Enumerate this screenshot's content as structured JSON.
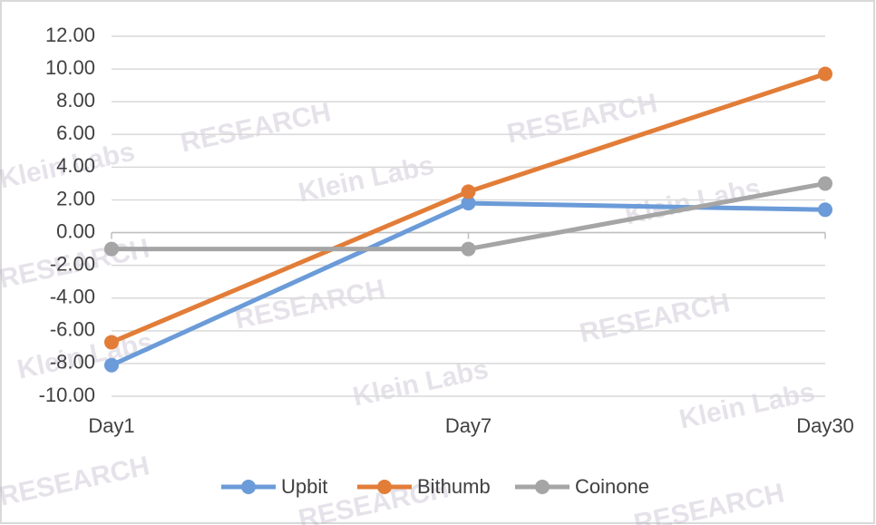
{
  "chart_data": {
    "type": "line",
    "categories": [
      "Day1",
      "Day7",
      "Day30"
    ],
    "series": [
      {
        "name": "Upbit",
        "color": "#6b9bd8",
        "values": [
          -8.1,
          1.8,
          1.4
        ]
      },
      {
        "name": "Bithumb",
        "color": "#e27d38",
        "values": [
          -6.7,
          2.5,
          9.7
        ]
      },
      {
        "name": "Coinone",
        "color": "#a5a5a5",
        "values": [
          -1.0,
          -1.0,
          3.0
        ]
      }
    ],
    "ylim": [
      -10,
      12
    ],
    "yticks": [
      {
        "value": -10,
        "label": "-10.00"
      },
      {
        "value": -8,
        "label": "-8.00"
      },
      {
        "value": -6,
        "label": "-6.00"
      },
      {
        "value": -4,
        "label": "-4.00"
      },
      {
        "value": -2,
        "label": "-2.00"
      },
      {
        "value": 0,
        "label": "0.00"
      },
      {
        "value": 2,
        "label": "2.00"
      },
      {
        "value": 4,
        "label": "4.00"
      },
      {
        "value": 6,
        "label": "6.00"
      },
      {
        "value": 8,
        "label": "8.00"
      },
      {
        "value": 10,
        "label": "10.00"
      },
      {
        "value": 12,
        "label": "12.00"
      }
    ],
    "grid": true,
    "legend": "bottom"
  },
  "watermarks": [
    "Klein Labs",
    "RESEARCH"
  ]
}
